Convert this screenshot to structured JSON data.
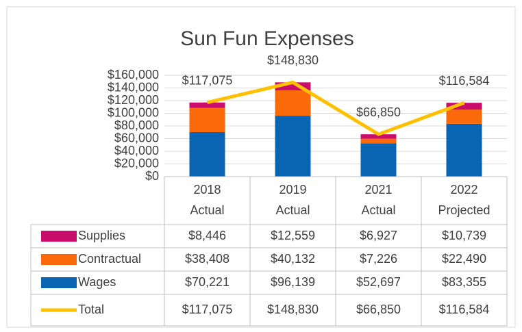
{
  "chart_data": {
    "type": "bar",
    "stacked": true,
    "title": "Sun Fun Expenses",
    "categories": [
      [
        "2018",
        "Actual"
      ],
      [
        "2019",
        "Actual"
      ],
      [
        "2021",
        "Actual"
      ],
      [
        "2022",
        "Projected"
      ]
    ],
    "series": [
      {
        "name": "Wages",
        "color": "#0a64b4",
        "values": [
          70221,
          96139,
          52697,
          83355
        ],
        "value_labels": [
          "$70,221",
          "$96,139",
          "$52,697",
          "$83,355"
        ]
      },
      {
        "name": "Contractual",
        "color": "#fa6a0a",
        "values": [
          38408,
          40132,
          7226,
          22490
        ],
        "value_labels": [
          "$38,408",
          "$40,132",
          "$7,226",
          "$22,490"
        ]
      },
      {
        "name": "Supplies",
        "color": "#c80d6c",
        "values": [
          8446,
          12559,
          6927,
          10739
        ],
        "value_labels": [
          "$8,446",
          "$12,559",
          "$6,927",
          "$10,739"
        ]
      },
      {
        "name": "Total",
        "type": "line",
        "color": "#ffc000",
        "values": [
          117075,
          148830,
          66850,
          116584
        ],
        "value_labels": [
          "$117,075",
          "$148,830",
          "$66,850",
          "$116,584"
        ]
      }
    ],
    "ylim": [
      0,
      160000
    ],
    "yticks": [
      {
        "value": 0,
        "label": "$0"
      },
      {
        "value": 20000,
        "label": "$20,000"
      },
      {
        "value": 40000,
        "label": "$40,000"
      },
      {
        "value": 60000,
        "label": "$60,000"
      },
      {
        "value": 80000,
        "label": "$80,000"
      },
      {
        "value": 100000,
        "label": "$100,000"
      },
      {
        "value": 120000,
        "label": "$120,000"
      },
      {
        "value": 140000,
        "label": "$140,000"
      },
      {
        "value": 160000,
        "label": "$160,000"
      }
    ],
    "grid": true,
    "data_table": true
  }
}
